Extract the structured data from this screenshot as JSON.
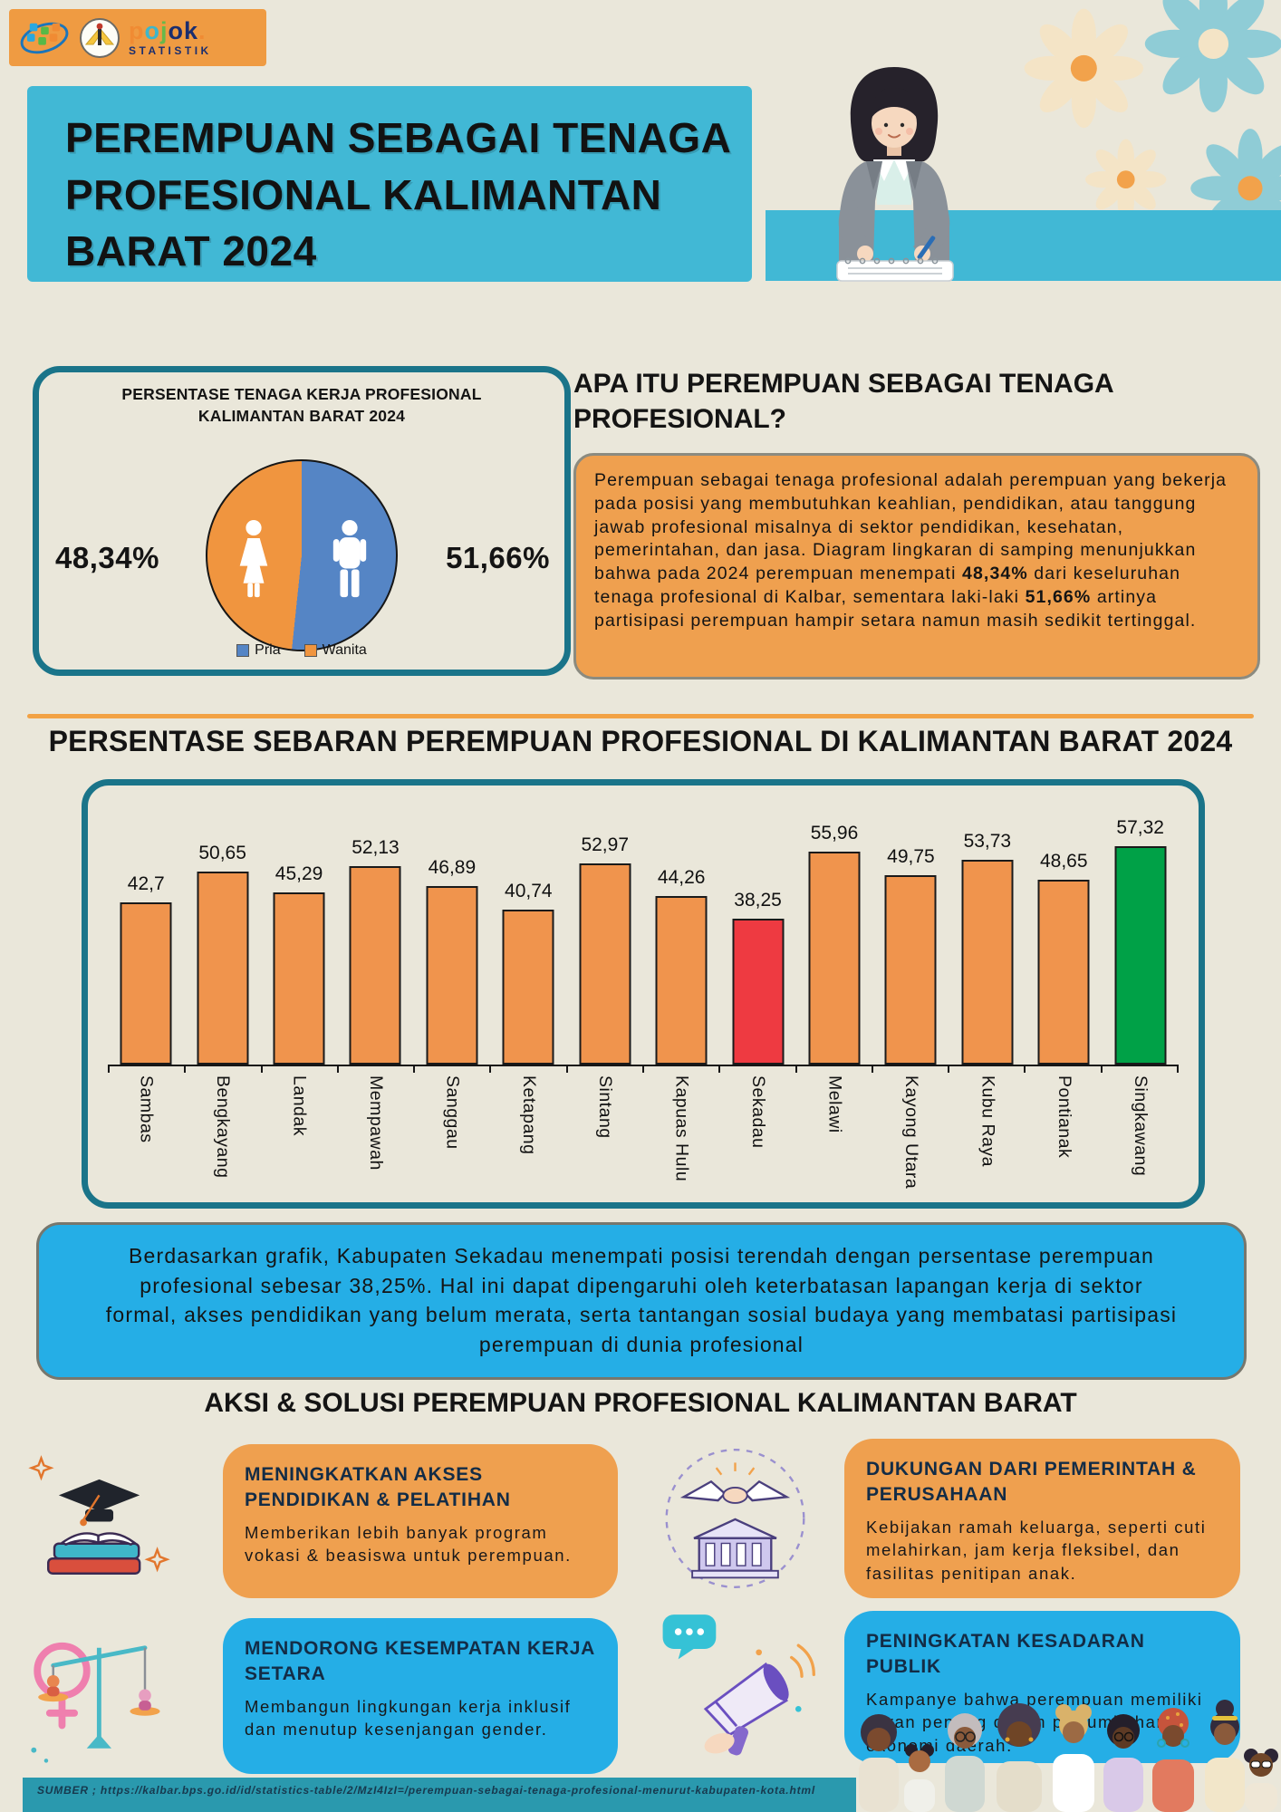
{
  "brand": {
    "letters": [
      {
        "ch": "p",
        "color": "#f08b33"
      },
      {
        "ch": "o",
        "color": "#3fb6c9"
      },
      {
        "ch": "j",
        "color": "#67b84b"
      },
      {
        "ch": "o",
        "color": "#1b2e6e"
      },
      {
        "ch": "k",
        "color": "#1b2e6e"
      },
      {
        "ch": ".",
        "color": "#f08b33"
      }
    ],
    "subtitle": "STATISTIK"
  },
  "title": "PEREMPUAN SEBAGAI TENAGA PROFESIONAL KALIMANTAN BARAT 2024",
  "pie_card": {
    "title_line1": "PERSENTASE TENAGA KERJA PROFESIONAL",
    "title_line2": "KALIMANTAN BARAT 2024"
  },
  "about": {
    "heading": "APA ITU PEREMPUAN SEBAGAI TENAGA PROFESIONAL?",
    "p1": "Perempuan sebagai tenaga profesional adalah perempuan yang bekerja pada posisi yang membutuhkan keahlian, pendidikan, atau tanggung jawab profesional misalnya di sektor pendidikan, kesehatan, pemerintahan, dan jasa. Diagram lingkaran di samping menunjukkan bahwa pada 2024 perempuan menempati ",
    "b1": "48,34%",
    "p2": " dari keseluruhan tenaga profesional di Kalbar, sementara laki-laki ",
    "b2": "51,66%",
    "p3": "  artinya partisipasi perempuan hampir setara namun masih sedikit tertinggal."
  },
  "chart_data": [
    {
      "type": "pie",
      "title": "PERSENTASE TENAGA KERJA PROFESIONAL KALIMANTAN BARAT 2024",
      "slices": [
        {
          "label": "Pria",
          "value": 51.66,
          "display": "51,66%",
          "color": "#5585c5"
        },
        {
          "label": "Wanita",
          "value": 48.34,
          "display": "48,34%",
          "color": "#f0953f"
        }
      ],
      "legend_position": "bottom"
    },
    {
      "type": "bar",
      "title": "PERSENTASE SEBARAN PEREMPUAN PROFESIONAL DI KALIMANTAN BARAT 2024",
      "categories": [
        "Sambas",
        "Bengkayang",
        "Landak",
        "Mempawah",
        "Sanggau",
        "Ketapang",
        "Sintang",
        "Kapuas Hulu",
        "Sekadau",
        "Melawi",
        "Kayong Utara",
        "Kubu Raya",
        "Pontianak",
        "Singkawang"
      ],
      "values": [
        42.7,
        50.65,
        45.29,
        52.13,
        46.89,
        40.74,
        52.97,
        44.26,
        38.25,
        55.96,
        49.75,
        53.73,
        48.65,
        57.32
      ],
      "value_labels": [
        "42,7",
        "50,65",
        "45,29",
        "52,13",
        "46,89",
        "40,74",
        "52,97",
        "44,26",
        "38,25",
        "55,96",
        "49,75",
        "53,73",
        "48,65",
        "57,32"
      ],
      "colors": [
        "#f0944d",
        "#f0944d",
        "#f0944d",
        "#f0944d",
        "#f0944d",
        "#f0944d",
        "#f0944d",
        "#f0944d",
        "#ee3a41",
        "#f0944d",
        "#f0944d",
        "#f0944d",
        "#f0944d",
        "#00a147"
      ],
      "ylim": [
        0,
        60
      ],
      "grid": false,
      "highlights": {
        "lowest": {
          "category": "Sekadau",
          "color": "#ee3a41"
        },
        "highest": {
          "category": "Singkawang",
          "color": "#00a147"
        }
      }
    }
  ],
  "conclusion": {
    "text": "Berdasarkan grafik, Kabupaten Sekadau menempati posisi terendah dengan persentase perempuan profesional sebesar 38,25%. Hal ini dapat dipengaruhi oleh keterbatasan lapangan kerja di sektor formal, akses pendidikan yang belum merata, serta tantangan sosial budaya yang membatasi partisipasi perempuan di dunia profesional"
  },
  "actions": {
    "heading": "AKSI & SOLUSI PEREMPUAN PROFESIONAL KALIMANTAN BARAT",
    "cards": [
      {
        "title": "MENINGKATKAN AKSES PENDIDIKAN & PELATIHAN",
        "body": "Memberikan lebih banyak program vokasi & beasiswa untuk perempuan.",
        "bg": "#efa04f",
        "icon": "graduation-books-icon"
      },
      {
        "title": "MENDORONG KESEMPATAN KERJA SETARA",
        "body": "Membangun lingkungan kerja inklusif dan menutup kesenjangan gender.",
        "bg": "#25aee6",
        "icon": "gender-equality-scales-icon"
      },
      {
        "title": "DUKUNGAN DARI PEMERINTAH & PERUSAHAAN",
        "body": "Kebijakan ramah keluarga, seperti cuti melahirkan, jam kerja fleksibel, dan fasilitas penitipan anak.",
        "bg": "#efa04f",
        "icon": "government-handshake-icon"
      },
      {
        "title": "PENINGKATAN KESADARAN PUBLIK",
        "body": "Kampanye bahwa perempuan memiliki peran penting dalam pertumbuhan ekonomi daerah.",
        "bg": "#25aee6",
        "icon": "megaphone-icon"
      }
    ]
  },
  "footer": {
    "source": "SUMBER ; https://kalbar.bps.go.id/id/statistics-table/2/MzI4IzI=/perempuan-sebagai-tenaga-profesional-menurut-kabupaten-kota.html"
  },
  "colors": {
    "background": "#eae7da",
    "teal_band": "#41b8d5",
    "deep_teal_border": "#1a7489",
    "orange_box": "#efa04f",
    "bright_blue_box": "#25aee6",
    "bar_orange": "#f0944d",
    "bar_red": "#ee3a41",
    "bar_green": "#00a147",
    "divider_orange": "#f2a245",
    "footer_teal": "#2a99ae",
    "logo_bar_orange": "#ef9b42"
  }
}
